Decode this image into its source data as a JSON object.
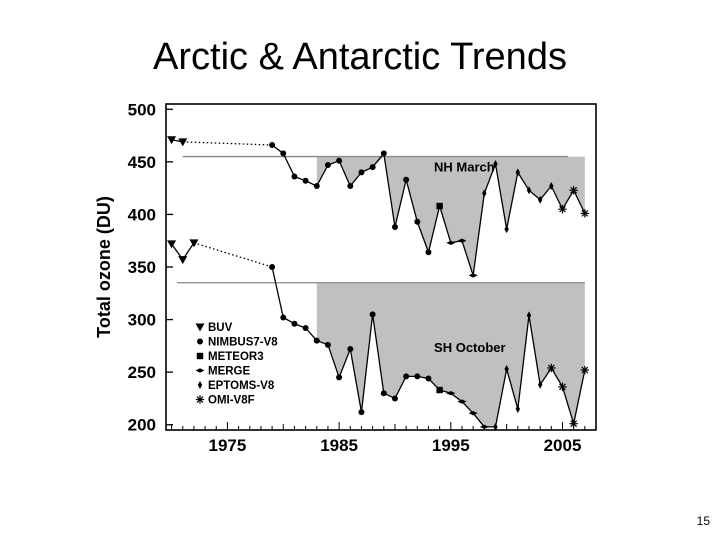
{
  "slide": {
    "title": "Arctic & Antarctic Trends",
    "page_number": "15"
  },
  "colors": {
    "shade": "#c0c0c0",
    "line": "#000000",
    "reference_line": "#888888"
  },
  "chart_data": {
    "type": "line",
    "title": "",
    "xlabel": "",
    "ylabel": "Total ozone (DU)",
    "xlim": [
      1969.5,
      2008
    ],
    "ylim": [
      195,
      505
    ],
    "xticks": [
      1975,
      1985,
      1995,
      2005
    ],
    "yticks": [
      200,
      250,
      300,
      350,
      400,
      450,
      500
    ],
    "legend_position": "lower-left",
    "legend": [
      {
        "label": "BUV",
        "marker": "triangle-down"
      },
      {
        "label": "NIMBUS7-V8",
        "marker": "circle"
      },
      {
        "label": "METEOR3",
        "marker": "square"
      },
      {
        "label": "MERGE",
        "marker": "diamond-wide"
      },
      {
        "label": "EPTOMS-V8",
        "marker": "diamond"
      },
      {
        "label": "OMI-V8F",
        "marker": "star"
      }
    ],
    "annotations": [
      {
        "text": "NH March",
        "x": 1993.5,
        "y": 441
      },
      {
        "text": "SH October",
        "x": 1993.5,
        "y": 269
      }
    ],
    "series": [
      {
        "name": "NH March",
        "reference_value": 455,
        "reference_x": [
          1971,
          2005.5
        ],
        "shade_from": 1983,
        "gap": [
          1972,
          1979
        ],
        "points": [
          [
            1970,
            471,
            "triangle-down"
          ],
          [
            1971,
            469,
            "triangle-down"
          ],
          [
            1979,
            466,
            "circle"
          ],
          [
            1980,
            458,
            "circle"
          ],
          [
            1981,
            436,
            "circle"
          ],
          [
            1982,
            432,
            "circle"
          ],
          [
            1983,
            427,
            "circle"
          ],
          [
            1984,
            447,
            "circle"
          ],
          [
            1985,
            451,
            "circle"
          ],
          [
            1986,
            427,
            "circle"
          ],
          [
            1987,
            440,
            "circle"
          ],
          [
            1988,
            445,
            "circle"
          ],
          [
            1989,
            458,
            "circle"
          ],
          [
            1990,
            388,
            "circle"
          ],
          [
            1991,
            433,
            "circle"
          ],
          [
            1992,
            393,
            "circle"
          ],
          [
            1993,
            364,
            "circle"
          ],
          [
            1994,
            408,
            "square"
          ],
          [
            1995,
            373,
            "diamond-wide"
          ],
          [
            1996,
            375,
            "diamond-wide"
          ],
          [
            1997,
            342,
            "diamond-wide"
          ],
          [
            1998,
            420,
            "diamond"
          ],
          [
            1999,
            448,
            "diamond"
          ],
          [
            2000,
            386,
            "diamond"
          ],
          [
            2001,
            440,
            "diamond"
          ],
          [
            2002,
            423,
            "diamond"
          ],
          [
            2003,
            414,
            "diamond"
          ],
          [
            2004,
            427,
            "diamond"
          ],
          [
            2005,
            405,
            "star"
          ],
          [
            2006,
            423,
            "star"
          ],
          [
            2007,
            401,
            "star"
          ]
        ]
      },
      {
        "name": "SH October",
        "reference_value": 335,
        "reference_x": [
          1970.5,
          2007
        ],
        "shade_from": 1983,
        "gap": [
          1972,
          1979
        ],
        "points": [
          [
            1970,
            372,
            "triangle-down"
          ],
          [
            1971,
            357,
            "triangle-down"
          ],
          [
            1972,
            373,
            "triangle-down"
          ],
          [
            1979,
            350,
            "circle"
          ],
          [
            1980,
            302,
            "circle"
          ],
          [
            1981,
            296,
            "circle"
          ],
          [
            1982,
            292,
            "circle"
          ],
          [
            1983,
            280,
            "circle"
          ],
          [
            1984,
            276,
            "circle"
          ],
          [
            1985,
            245,
            "circle"
          ],
          [
            1986,
            272,
            "circle"
          ],
          [
            1987,
            212,
            "circle"
          ],
          [
            1988,
            305,
            "circle"
          ],
          [
            1989,
            230,
            "circle"
          ],
          [
            1990,
            225,
            "circle"
          ],
          [
            1991,
            246,
            "circle"
          ],
          [
            1992,
            246,
            "circle"
          ],
          [
            1993,
            244,
            "circle"
          ],
          [
            1994,
            233,
            "square"
          ],
          [
            1995,
            230,
            "diamond-wide"
          ],
          [
            1996,
            222,
            "diamond-wide"
          ],
          [
            1997,
            211,
            "diamond-wide"
          ],
          [
            1998,
            198,
            "diamond-wide"
          ],
          [
            1999,
            198,
            "diamond"
          ],
          [
            2000,
            253,
            "diamond"
          ],
          [
            2001,
            215,
            "diamond"
          ],
          [
            2002,
            304,
            "diamond"
          ],
          [
            2003,
            238,
            "diamond"
          ],
          [
            2004,
            254,
            "star"
          ],
          [
            2005,
            236,
            "star"
          ],
          [
            2006,
            201,
            "star"
          ],
          [
            2007,
            252,
            "star"
          ]
        ]
      }
    ]
  }
}
